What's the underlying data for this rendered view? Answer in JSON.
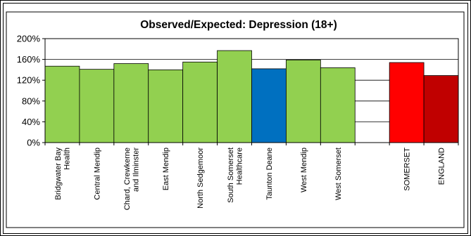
{
  "chart_data": {
    "type": "bar",
    "title": "Observed/Expected: Depression (18+)",
    "xlabel": "",
    "ylabel": "",
    "ylim": [
      0,
      200
    ],
    "yticks": [
      "0%",
      "40%",
      "80%",
      "120%",
      "160%",
      "200%"
    ],
    "grid": true,
    "legend": "none",
    "categories": [
      [
        "Bridgwater Bay",
        "Health"
      ],
      [
        "Central Mendip"
      ],
      [
        "Chard, Crewkerne",
        "and Ilminster"
      ],
      [
        "East Mendip"
      ],
      [
        "North Sedgemoor"
      ],
      [
        "South Somerset",
        "Healthcare"
      ],
      [
        "Taunton Deane"
      ],
      [
        "West Mendip"
      ],
      [
        "West Somerset"
      ],
      [],
      [
        "SOMERSET"
      ],
      [
        "ENGLAND"
      ]
    ],
    "values": [
      147,
      141,
      152,
      140,
      155,
      177,
      142,
      159,
      144,
      null,
      154,
      129
    ],
    "colors": [
      "#92d050",
      "#92d050",
      "#92d050",
      "#92d050",
      "#92d050",
      "#92d050",
      "#0070c0",
      "#92d050",
      "#92d050",
      null,
      "#ff0000",
      "#c00000"
    ]
  }
}
